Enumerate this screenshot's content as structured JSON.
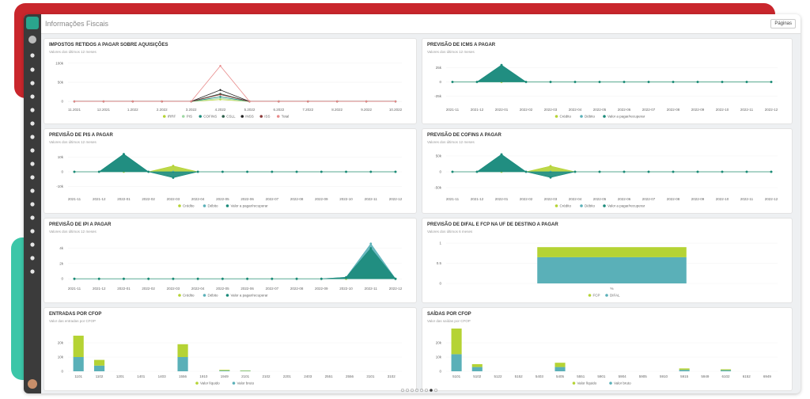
{
  "header": {
    "title": "Informações Fiscais",
    "pages_button": "Páginas"
  },
  "panels": [
    {
      "title": "IMPOSTOS RETIDOS A PAGAR SOBRE AQUISIÇÕES",
      "subtitle": "Valores dos últimos 12 meses",
      "chart": {
        "type": "line",
        "grid": true,
        "categories": [
          "11.2021",
          "12.2021",
          "1.2022",
          "2.2022",
          "3.2022",
          "4.2022",
          "5.2022",
          "6.2022",
          "7.2022",
          "8.2022",
          "9.2022",
          "10.2022"
        ],
        "ylim": [
          -8000,
          110000
        ],
        "yticks": [
          0,
          {
            "value": 50000,
            "label": "50k"
          },
          {
            "value": 100000,
            "label": "100k"
          }
        ],
        "series": [
          {
            "name": "IRRF",
            "color": "#b5d334",
            "values": [
              0,
              0,
              0,
              0,
              0,
              5000,
              0,
              0,
              0,
              0,
              0,
              0
            ]
          },
          {
            "name": "PIS",
            "color": "#9fd8a4",
            "values": [
              0,
              0,
              0,
              0,
              0,
              8000,
              0,
              0,
              0,
              0,
              0,
              0
            ]
          },
          {
            "name": "COFINS",
            "color": "#1a8a7a",
            "values": [
              0,
              0,
              0,
              0,
              0,
              12000,
              0,
              0,
              0,
              0,
              0,
              0
            ]
          },
          {
            "name": "CSLL",
            "color": "#2d5f4a",
            "values": [
              0,
              0,
              0,
              0,
              0,
              20000,
              0,
              0,
              0,
              0,
              0,
              0
            ]
          },
          {
            "name": "INSS",
            "color": "#222222",
            "values": [
              0,
              0,
              0,
              0,
              0,
              30000,
              0,
              0,
              0,
              0,
              0,
              0
            ]
          },
          {
            "name": "ISS",
            "color": "#8b3a3a",
            "values": [
              0,
              0,
              0,
              0,
              0,
              18000,
              0,
              0,
              0,
              0,
              0,
              0
            ]
          },
          {
            "name": "Total",
            "color": "#e88a8a",
            "values": [
              0,
              0,
              0,
              0,
              0,
              93000,
              0,
              0,
              0,
              0,
              0,
              0
            ]
          }
        ]
      }
    },
    {
      "title": "PREVISÃO DE ICMS A PAGAR",
      "subtitle": "Valores dos últimos 12 meses",
      "chart": {
        "type": "area",
        "grid": false,
        "categories": [
          "2021-11",
          "2021-12",
          "2022-01",
          "2022-02",
          "2022-03",
          "2022-04",
          "2022-05",
          "2022-06",
          "2022-07",
          "2022-08",
          "2022-09",
          "2022-10",
          "2022-11",
          "2022-12"
        ],
        "ylim": [
          -40000,
          40000
        ],
        "yticks": [
          {
            "value": -25000,
            "label": "-25k"
          },
          0,
          {
            "value": 25000,
            "label": "25k"
          }
        ],
        "series": [
          {
            "name": "Crédito",
            "color": "#b5d334",
            "values": [
              0,
              0,
              0,
              0,
              0,
              0,
              0,
              0,
              0,
              0,
              0,
              0,
              0,
              0
            ]
          },
          {
            "name": "Débito",
            "color": "#5ab0b8",
            "values": [
              0,
              0,
              30000,
              0,
              0,
              0,
              0,
              0,
              0,
              0,
              0,
              0,
              0,
              0
            ]
          },
          {
            "name": "Valor a pagar/recuperar",
            "color": "#1a8a7a",
            "values": [
              0,
              0,
              30000,
              0,
              0,
              0,
              0,
              0,
              0,
              0,
              0,
              0,
              0,
              0
            ]
          }
        ]
      }
    },
    {
      "title": "PREVISÃO DE PIS A PAGAR",
      "subtitle": "Valores dos últimos 12 meses",
      "chart": {
        "type": "area",
        "grid": false,
        "categories": [
          "2021-11",
          "2021-12",
          "2022-01",
          "2022-02",
          "2022-03",
          "2022-04",
          "2022-05",
          "2022-06",
          "2022-07",
          "2022-08",
          "2022-09",
          "2022-10",
          "2022-11",
          "2022-12"
        ],
        "ylim": [
          -15000,
          15000
        ],
        "yticks": [
          {
            "value": -10000,
            "label": "-10k"
          },
          0,
          {
            "value": 10000,
            "label": "10k"
          }
        ],
        "series": [
          {
            "name": "Crédito",
            "color": "#b5d334",
            "values": [
              0,
              0,
              0,
              0,
              4000,
              0,
              0,
              0,
              0,
              0,
              0,
              0,
              0,
              0
            ]
          },
          {
            "name": "Débito",
            "color": "#5ab0b8",
            "values": [
              0,
              0,
              12000,
              0,
              0,
              0,
              0,
              0,
              0,
              0,
              0,
              0,
              0,
              0
            ]
          },
          {
            "name": "Valor a pagar/recuperar",
            "color": "#1a8a7a",
            "values": [
              0,
              0,
              12000,
              0,
              -4000,
              0,
              0,
              0,
              0,
              0,
              0,
              0,
              0,
              0
            ]
          }
        ]
      }
    },
    {
      "title": "PREVISÃO DE COFINS A PAGAR",
      "subtitle": "Valores dos últimos 12 meses",
      "chart": {
        "type": "area",
        "grid": false,
        "categories": [
          "2021-11",
          "2021-12",
          "2022-01",
          "2022-02",
          "2022-03",
          "2022-04",
          "2022-05",
          "2022-06",
          "2022-07",
          "2022-08",
          "2022-09",
          "2022-10",
          "2022-11",
          "2022-12"
        ],
        "ylim": [
          -70000,
          70000
        ],
        "yticks": [
          {
            "value": -50000,
            "label": "-50k"
          },
          0,
          {
            "value": 50000,
            "label": "50k"
          }
        ],
        "series": [
          {
            "name": "Crédito",
            "color": "#b5d334",
            "values": [
              0,
              0,
              0,
              0,
              18000,
              0,
              0,
              0,
              0,
              0,
              0,
              0,
              0,
              0
            ]
          },
          {
            "name": "Débito",
            "color": "#5ab0b8",
            "values": [
              0,
              0,
              55000,
              0,
              0,
              0,
              0,
              0,
              0,
              0,
              0,
              0,
              0,
              0
            ]
          },
          {
            "name": "Valor a pagar/recuperar",
            "color": "#1a8a7a",
            "values": [
              0,
              0,
              55000,
              0,
              -18000,
              0,
              0,
              0,
              0,
              0,
              0,
              0,
              0,
              0
            ]
          }
        ]
      }
    },
    {
      "title": "PREVISÃO DE IPI A PAGAR",
      "subtitle": "Valores dos últimos 12 meses",
      "chart": {
        "type": "area",
        "grid": false,
        "categories": [
          "2021-11",
          "2021-12",
          "2022-01",
          "2022-02",
          "2022-03",
          "2022-04",
          "2022-05",
          "2022-06",
          "2022-07",
          "2022-08",
          "2022-09",
          "2022-10",
          "2022-11",
          "2022-12"
        ],
        "ylim": [
          -600,
          5200
        ],
        "yticks": [
          0,
          {
            "value": 2000,
            "label": "2k"
          },
          {
            "value": 4000,
            "label": "4k"
          }
        ],
        "series": [
          {
            "name": "Crédito",
            "color": "#b5d334",
            "values": [
              0,
              0,
              0,
              0,
              0,
              0,
              0,
              0,
              0,
              0,
              0,
              0,
              600,
              0
            ]
          },
          {
            "name": "Débito",
            "color": "#5ab0b8",
            "values": [
              0,
              0,
              0,
              0,
              0,
              0,
              0,
              0,
              0,
              0,
              0,
              200,
              4600,
              0
            ]
          },
          {
            "name": "Valor a pagar/recuperar",
            "color": "#1a8a7a",
            "values": [
              0,
              0,
              0,
              0,
              0,
              0,
              0,
              0,
              0,
              0,
              0,
              200,
              4000,
              0
            ]
          }
        ]
      }
    },
    {
      "title": "PREVISÃO DE DIFAL E FCP NA UF DE DESTINO A PAGAR",
      "subtitle": "Valores dos últimos 6 meses",
      "chart": {
        "type": "bar",
        "grid": false,
        "categories": [
          "%"
        ],
        "ylim": [
          0,
          1.1
        ],
        "yticks": [
          0,
          0.5,
          1
        ],
        "series": [
          {
            "name": "FCP",
            "color": "#b5d334",
            "values": [
              0.25
            ]
          },
          {
            "name": "DIFAL",
            "color": "#5ab0b8",
            "values": [
              0.65
            ]
          }
        ]
      }
    },
    {
      "title": "ENTRADAS POR CFOP",
      "subtitle": "Valor das entradas por CFOP",
      "chart": {
        "type": "bar",
        "grid": false,
        "categories": [
          "1101",
          "1102",
          "1201",
          "1401",
          "1403",
          "1556",
          "1910",
          "1949",
          "2101",
          "2102",
          "2201",
          "2403",
          "2551",
          "2556",
          "3101",
          "3102"
        ],
        "ylim": [
          0,
          30000
        ],
        "yticks": [
          0,
          {
            "value": 10000,
            "label": "10k"
          },
          {
            "value": 20000,
            "label": "20k"
          }
        ],
        "series": [
          {
            "name": "Valor líquido",
            "color": "#b5d334",
            "values": [
              15000,
              4000,
              0,
              0,
              0,
              9000,
              0,
              500,
              300,
              0,
              0,
              0,
              0,
              0,
              0,
              0
            ]
          },
          {
            "name": "Valor bruto",
            "color": "#5ab0b8",
            "values": [
              10000,
              4000,
              0,
              0,
              0,
              10000,
              0,
              500,
              300,
              0,
              0,
              0,
              0,
              0,
              0,
              0
            ]
          }
        ]
      }
    },
    {
      "title": "SAÍDAS POR CFOP",
      "subtitle": "Valor das saídas por CFOP",
      "chart": {
        "type": "bar",
        "grid": false,
        "categories": [
          "5101",
          "5102",
          "5122",
          "5152",
          "5403",
          "5405",
          "5551",
          "5901",
          "5904",
          "5905",
          "5910",
          "5915",
          "5949",
          "6102",
          "6152",
          "6949"
        ],
        "ylim": [
          0,
          30000
        ],
        "yticks": [
          0,
          {
            "value": 10000,
            "label": "10k"
          },
          {
            "value": 20000,
            "label": "20k"
          }
        ],
        "series": [
          {
            "name": "Valor líquido",
            "color": "#b5d334",
            "values": [
              18000,
              2000,
              0,
              0,
              0,
              3000,
              0,
              0,
              0,
              0,
              0,
              1000,
              0,
              600,
              0,
              0
            ]
          },
          {
            "name": "Valor bruto",
            "color": "#5ab0b8",
            "values": [
              12000,
              3000,
              0,
              0,
              0,
              3000,
              0,
              0,
              0,
              0,
              0,
              1000,
              0,
              800,
              0,
              0
            ]
          }
        ]
      }
    }
  ]
}
